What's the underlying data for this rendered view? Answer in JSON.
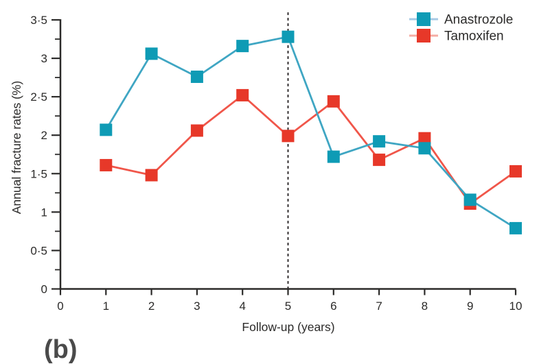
{
  "figure": {
    "panel_label": "(b)"
  },
  "chart_data": {
    "type": "line",
    "title": "",
    "xlabel": "Follow-up (years)",
    "ylabel": "Annual fracture rates (%)",
    "xlim": [
      0,
      10
    ],
    "ylim": [
      0,
      3.5
    ],
    "x": [
      1,
      2,
      3,
      4,
      5,
      6,
      7,
      8,
      9,
      10
    ],
    "x_ticks": [
      0,
      1,
      2,
      3,
      4,
      5,
      6,
      7,
      8,
      9,
      10
    ],
    "x_tick_labels": [
      "0",
      "1",
      "2",
      "3",
      "4",
      "5",
      "6",
      "7",
      "8",
      "9",
      "10"
    ],
    "y_ticks": [
      0,
      0.5,
      1,
      1.5,
      2,
      2.5,
      3,
      3.5
    ],
    "y_tick_labels": [
      "0",
      "0·5",
      "1",
      "1·5",
      "2",
      "2·5",
      "3",
      "3·5"
    ],
    "y_minor_tick_step": 0.25,
    "grid": false,
    "legend_position": "top-right",
    "vline": {
      "x": 5,
      "style": "dashed",
      "color": "#231F20"
    },
    "series": [
      {
        "name": "Anastrozole",
        "marker": "square",
        "marker_color": "#0E9BB5",
        "line_color": "#3FA6C3",
        "legend_line_color": "#A6C9E4",
        "values": [
          2.07,
          3.06,
          2.76,
          3.16,
          3.28,
          1.72,
          1.92,
          1.83,
          1.16,
          0.79
        ]
      },
      {
        "name": "Tamoxifen",
        "marker": "square",
        "marker_color": "#E73829",
        "line_color": "#F0564A",
        "legend_line_color": "#F5ACA3",
        "values": [
          1.61,
          1.48,
          2.06,
          2.52,
          1.99,
          2.44,
          1.68,
          1.96,
          1.11,
          1.53
        ]
      }
    ],
    "axis_color": "#2B2A29",
    "text_color": "#2B2A29"
  }
}
